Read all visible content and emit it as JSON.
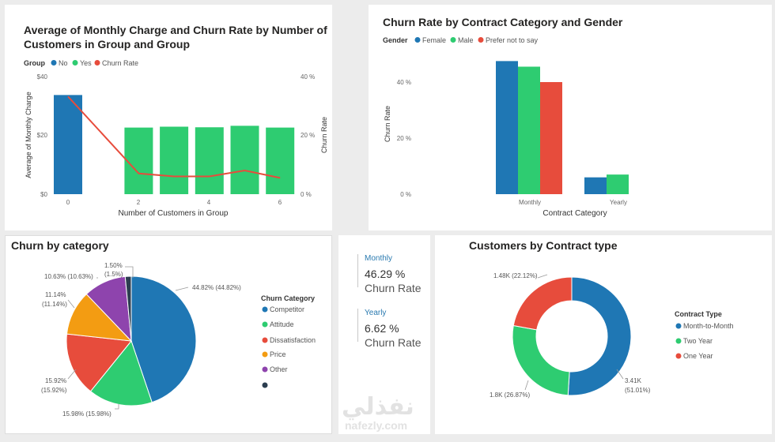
{
  "colors": {
    "blue": "#1f77b4",
    "green": "#2ecc71",
    "red": "#e74c3c",
    "orange": "#f39c12",
    "purple": "#8e44ad",
    "dark": "#2c3e50"
  },
  "chart1": {
    "title_line1": "Average of Monthly Charge and Churn Rate by Number of",
    "title_line2": "Customers in Group and Group",
    "legend_title": "Group",
    "legend": [
      "No",
      "Yes",
      "Churn Rate"
    ],
    "xlabel": "Number of Customers in Group",
    "ylabel": "Average of Monthly Charge",
    "y2label": "Churn Rate",
    "yticks": [
      "$0",
      "$20",
      "$40"
    ],
    "y2ticks": [
      "0 %",
      "20 %",
      "40 %"
    ],
    "xticks": [
      "0",
      "2",
      "4",
      "6"
    ]
  },
  "chart2": {
    "title": "Churn Rate by Contract Category and Gender",
    "legend_title": "Gender",
    "legend": [
      "Female",
      "Male",
      "Prefer not to say"
    ],
    "xlabel": "Contract Category",
    "ylabel": "Churn Rate",
    "yticks": [
      "0 %",
      "20 %",
      "40 %"
    ]
  },
  "chart3": {
    "title": "Churn by category",
    "legend_title": "Churn Category",
    "slice_labels": [
      "44.82% (44.82%)",
      "15.98% (15.98%)",
      "15.92%",
      "(15.92%)",
      "11.14%",
      "(11.14%)",
      "10.63% (10.63%)",
      "1.50%",
      "(1.5%)"
    ]
  },
  "chart4": {
    "title": "Customers by Contract type",
    "legend_title": "Contract Type",
    "slice_labels": [
      "3.41K",
      "(51.01%)",
      "1.8K (26.87%)",
      "1.48K (22.12%)"
    ]
  },
  "cards": [
    {
      "label": "Monthly",
      "value": "46.29 %",
      "sub": "Churn Rate"
    },
    {
      "label": "Yearly",
      "value": "6.62 %",
      "sub": "Churn Rate"
    }
  ],
  "watermark": {
    "arabic": "نفذلي",
    "latin": "nafezly.com"
  },
  "chart_data": [
    {
      "type": "bar",
      "title": "Average of Monthly Charge and Churn Rate by Number of Customers in Group and Group",
      "xlabel": "Number of Customers in Group",
      "ylabel": "Average of Monthly Charge",
      "y2label": "Churn Rate",
      "x": [
        0,
        2,
        3,
        4,
        5,
        6
      ],
      "ylim": [
        0,
        40
      ],
      "y2lim": [
        0,
        40
      ],
      "series": [
        {
          "name": "No",
          "values": [
            33.5,
            null,
            null,
            null,
            null,
            null
          ]
        },
        {
          "name": "Yes",
          "values": [
            null,
            22.5,
            22.8,
            22.6,
            23.1,
            22.5
          ]
        },
        {
          "name": "Churn Rate",
          "axis": "y2",
          "values": [
            33,
            7,
            6,
            6,
            8,
            5.5
          ]
        }
      ],
      "legend_position": "top-left"
    },
    {
      "type": "bar",
      "title": "Churn Rate by Contract Category and Gender",
      "xlabel": "Contract Category",
      "ylabel": "Churn Rate",
      "categories": [
        "Monthly",
        "Yearly"
      ],
      "ylim": [
        0,
        50
      ],
      "series": [
        {
          "name": "Female",
          "values": [
            47.5,
            6
          ]
        },
        {
          "name": "Male",
          "values": [
            45.5,
            7
          ]
        },
        {
          "name": "Prefer not to say",
          "values": [
            40,
            null
          ]
        }
      ],
      "legend_position": "top-left"
    },
    {
      "type": "pie",
      "title": "Churn by category",
      "categories": [
        "Competitor",
        "Attitude",
        "Dissatisfaction",
        "Price",
        "Other",
        ""
      ],
      "values": [
        44.82,
        15.98,
        15.92,
        11.14,
        10.63,
        1.5
      ],
      "legend_position": "right"
    },
    {
      "type": "pie",
      "variant": "donut",
      "title": "Customers by Contract type",
      "categories": [
        "Month-to-Month",
        "Two Year",
        "One Year"
      ],
      "values": [
        3.41,
        1.8,
        1.48
      ],
      "percents": [
        51.01,
        26.87,
        22.12
      ],
      "legend_position": "right"
    }
  ]
}
